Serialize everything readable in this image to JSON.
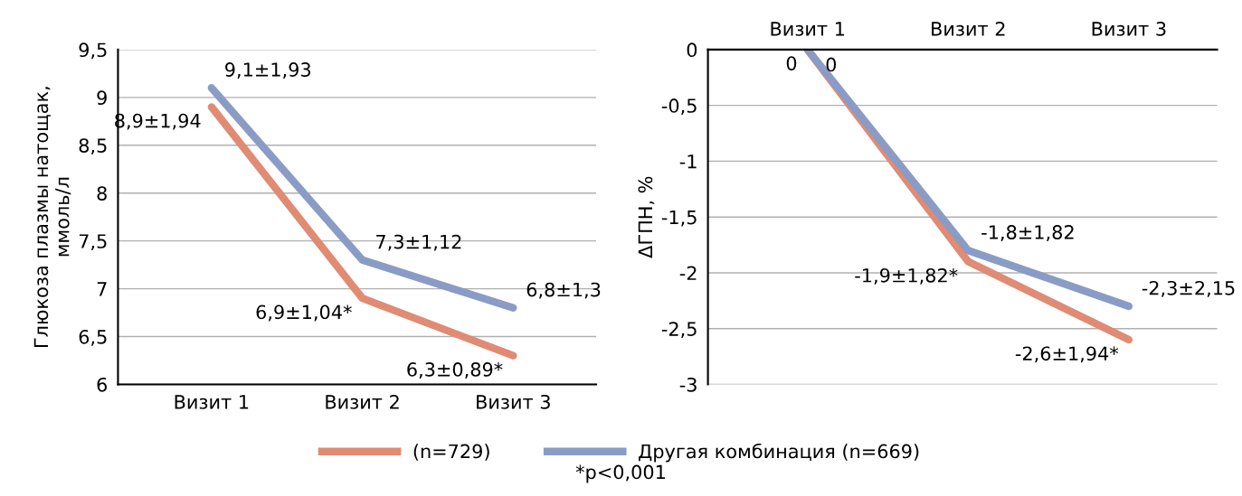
{
  "chart_data": [
    {
      "type": "line",
      "ylabel": "Глюкоза плазмы натощак,\nммоль/л",
      "categories": [
        "Визит 1",
        "Визит 2",
        "Визит 3"
      ],
      "series": [
        {
          "name": "(n=729)",
          "color": "#e08b74",
          "values": [
            8.9,
            6.9,
            6.3
          ],
          "value_labels": [
            "8,9±1,94",
            "6,9±1,04*",
            "6,3±0,89*"
          ]
        },
        {
          "name": "Другая комбинация (n=669)",
          "color": "#8a9cc6",
          "values": [
            9.1,
            7.3,
            6.8
          ],
          "value_labels": [
            "9,1±1,93",
            "7,3±1,12",
            "6,8±1,3"
          ]
        }
      ],
      "ylim": [
        6,
        9.5
      ],
      "yticks": [
        6,
        {
          "value": 6.5,
          "label": "6,5"
        },
        7,
        {
          "value": 7.5,
          "label": "7,5"
        },
        8,
        {
          "value": 8.5,
          "label": "8,5"
        },
        9,
        {
          "value": 9.5,
          "label": "9,5"
        }
      ],
      "grid": "y",
      "legend": "bottom",
      "marker": "none",
      "line_style": "solid",
      "annotations": [
        "*p<0,001"
      ]
    },
    {
      "type": "line",
      "ylabel": "ΔГПН, %",
      "categories": [
        "Визит 1",
        "Визит 2",
        "Визит 3"
      ],
      "series": [
        {
          "color": "#e08b74",
          "values": [
            0,
            -1.9,
            -2.6
          ],
          "value_labels": [
            "0",
            "-1,9±1,82*",
            "-2,6±1,94*"
          ]
        },
        {
          "color": "#8a9cc6",
          "values": [
            0,
            -1.8,
            -2.3
          ],
          "value_labels": [
            "0",
            "-1,8±1,82",
            "-2,3±2,15"
          ]
        }
      ],
      "ylim": [
        -3,
        0
      ],
      "yticks": [
        {
          "value": -3,
          "label": "-3"
        },
        {
          "value": -2.5,
          "label": "-2,5"
        },
        {
          "value": -2,
          "label": "-2"
        },
        {
          "value": -1.5,
          "label": "-1,5"
        },
        {
          "value": -1,
          "label": "-1"
        },
        {
          "value": -0.5,
          "label": "-0,5"
        },
        0
      ],
      "grid": "y",
      "marker": "none",
      "line_style": "solid"
    }
  ]
}
